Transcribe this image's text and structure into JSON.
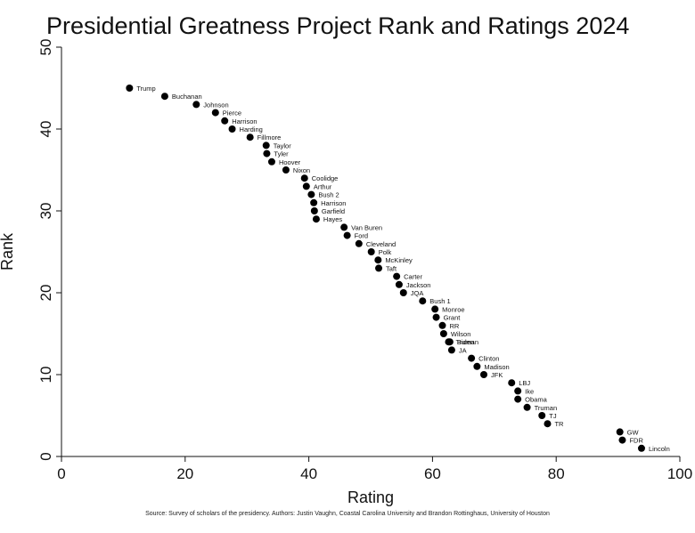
{
  "chart_data": {
    "type": "scatter",
    "title": "Presidential Greatness Project Rank and Ratings 2024",
    "xlabel": "Rating",
    "ylabel": "Rank",
    "xlim": [
      0,
      100
    ],
    "ylim": [
      0,
      50
    ],
    "x_ticks": [
      "0",
      "20",
      "40",
      "60",
      "80",
      "100"
    ],
    "y_ticks": [
      "0",
      "10",
      "20",
      "30",
      "40",
      "50"
    ],
    "grid": false,
    "legend": "none",
    "marker_color": "#000000",
    "points": [
      {
        "label": "Trump",
        "x": 11,
        "y": 45
      },
      {
        "label": "Buchanan",
        "x": 16.7,
        "y": 44
      },
      {
        "label": "Johnson",
        "x": 21.8,
        "y": 43
      },
      {
        "label": "Pierce",
        "x": 24.9,
        "y": 42
      },
      {
        "label": "Harrison",
        "x": 26.4,
        "y": 41
      },
      {
        "label": "Harding",
        "x": 27.6,
        "y": 40
      },
      {
        "label": "Fillmore",
        "x": 30.5,
        "y": 39
      },
      {
        "label": "Taylor",
        "x": 33.1,
        "y": 38
      },
      {
        "label": "Tyler",
        "x": 33.2,
        "y": 37
      },
      {
        "label": "Hoover",
        "x": 34.0,
        "y": 36
      },
      {
        "label": "Nixon",
        "x": 36.3,
        "y": 35
      },
      {
        "label": "Coolidge",
        "x": 39.3,
        "y": 34
      },
      {
        "label": "Arthur",
        "x": 39.6,
        "y": 33
      },
      {
        "label": "Bush 2",
        "x": 40.4,
        "y": 32
      },
      {
        "label": "Harrison",
        "x": 40.8,
        "y": 31
      },
      {
        "label": "Garfield",
        "x": 40.9,
        "y": 30
      },
      {
        "label": "Hayes",
        "x": 41.2,
        "y": 29
      },
      {
        "label": "Van Buren",
        "x": 45.7,
        "y": 28
      },
      {
        "label": "Ford",
        "x": 46.2,
        "y": 27
      },
      {
        "label": "Cleveland",
        "x": 48.1,
        "y": 26
      },
      {
        "label": "Polk",
        "x": 50.1,
        "y": 25
      },
      {
        "label": "McKinley",
        "x": 51.2,
        "y": 24
      },
      {
        "label": "Taft",
        "x": 51.3,
        "y": 23
      },
      {
        "label": "Carter",
        "x": 54.2,
        "y": 22
      },
      {
        "label": "Jackson",
        "x": 54.6,
        "y": 21
      },
      {
        "label": "JQA",
        "x": 55.3,
        "y": 20
      },
      {
        "label": "Bush 1",
        "x": 58.4,
        "y": 19
      },
      {
        "label": "Monroe",
        "x": 60.4,
        "y": 18
      },
      {
        "label": "Grant",
        "x": 60.6,
        "y": 17
      },
      {
        "label": "RR",
        "x": 61.6,
        "y": 16
      },
      {
        "label": "Wilson",
        "x": 61.8,
        "y": 15
      },
      {
        "label": "Truman",
        "x": 62.6,
        "y": 14
      },
      {
        "label": "Biden",
        "x": 62.8,
        "y": 14
      },
      {
        "label": "JA",
        "x": 63.1,
        "y": 13
      },
      {
        "label": "Clinton",
        "x": 66.3,
        "y": 12
      },
      {
        "label": "Madison",
        "x": 67.2,
        "y": 11
      },
      {
        "label": "JFK",
        "x": 68.3,
        "y": 10
      },
      {
        "label": "LBJ",
        "x": 72.8,
        "y": 9
      },
      {
        "label": "Ike",
        "x": 73.8,
        "y": 8
      },
      {
        "label": "Obama",
        "x": 73.8,
        "y": 7
      },
      {
        "label": "Truman",
        "x": 75.3,
        "y": 6
      },
      {
        "label": "TJ",
        "x": 77.7,
        "y": 5
      },
      {
        "label": "TR",
        "x": 78.6,
        "y": 4
      },
      {
        "label": "GW",
        "x": 90.3,
        "y": 3
      },
      {
        "label": "FDR",
        "x": 90.7,
        "y": 2
      },
      {
        "label": "Lincoln",
        "x": 93.8,
        "y": 1
      }
    ]
  },
  "source_note": "Source: Survey of scholars of the presidency.  Authors: Justin Vaughn, Coastal Carolina University and Brandon Rottinghaus, University of Houston"
}
